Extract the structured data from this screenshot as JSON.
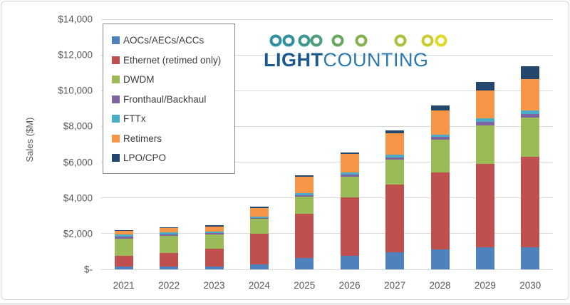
{
  "accent_colors": {
    "axis_text": "#595959",
    "gridline": "#d9d9d9",
    "legend_border": "#898989",
    "logo_bold_blue": "#1b5a8d",
    "logo_light_blue": "#2d7ab0"
  },
  "logo": {
    "brand_bold": "LIGHT",
    "brand_regular": "COUNTING",
    "chain_icon_colors": [
      "#2e8fa0",
      "#2e8fa0",
      "#3d968f",
      "#4d9e78",
      "#66a95e",
      "#82b34c",
      "#a9c13b",
      "#cbcc2f",
      "#dfd928"
    ]
  },
  "chart_data": {
    "type": "bar",
    "stacked": true,
    "title": "",
    "ylabel": "Sales ($M)",
    "xlabel": "",
    "ylim": [
      0,
      14000
    ],
    "grid": true,
    "legend_position": "upper-left-inside",
    "categories": [
      "2021",
      "2022",
      "2023",
      "2024",
      "2025",
      "2026",
      "2027",
      "2028",
      "2029",
      "2030"
    ],
    "yticks": [
      {
        "label": "$-",
        "value": 0
      },
      {
        "label": "$2,000",
        "value": 2000
      },
      {
        "label": "$4,000",
        "value": 4000
      },
      {
        "label": "$6,000",
        "value": 6000
      },
      {
        "label": "$8,000",
        "value": 8000
      },
      {
        "label": "$10,000",
        "value": 10000
      },
      {
        "label": "$12,000",
        "value": 12000
      },
      {
        "label": "$14,000",
        "value": 14000
      }
    ],
    "series": [
      {
        "name": "AOCs/AECs/ACCs",
        "color": "#4f81bd",
        "values": [
          150,
          180,
          160,
          270,
          630,
          750,
          940,
          1100,
          1250,
          1250
        ]
      },
      {
        "name": "Ethernet (retimed only)",
        "color": "#c0504d",
        "values": [
          600,
          740,
          980,
          1730,
          2500,
          3290,
          3800,
          4310,
          4670,
          5060
        ]
      },
      {
        "name": "DWDM",
        "color": "#9bbb59",
        "values": [
          950,
          940,
          820,
          820,
          940,
          1140,
          1410,
          1840,
          2120,
          2200
        ]
      },
      {
        "name": "Fronthaul/Backhaul",
        "color": "#8064a2",
        "values": [
          120,
          110,
          80,
          60,
          80,
          120,
          120,
          160,
          200,
          200
        ]
      },
      {
        "name": "FTTx",
        "color": "#4bacc6",
        "values": [
          120,
          110,
          80,
          60,
          120,
          120,
          150,
          120,
          200,
          200
        ]
      },
      {
        "name": "Retimers",
        "color": "#f79646",
        "values": [
          200,
          230,
          270,
          510,
          900,
          1060,
          1180,
          1370,
          1570,
          1760
        ]
      },
      {
        "name": "LPO/CPO",
        "color": "#24476d",
        "values": [
          40,
          40,
          80,
          80,
          80,
          80,
          160,
          280,
          470,
          700
        ]
      }
    ],
    "totals": [
      2180,
      2350,
      2470,
      3530,
      5250,
      6560,
      7760,
      9180,
      10480,
      11370
    ]
  }
}
